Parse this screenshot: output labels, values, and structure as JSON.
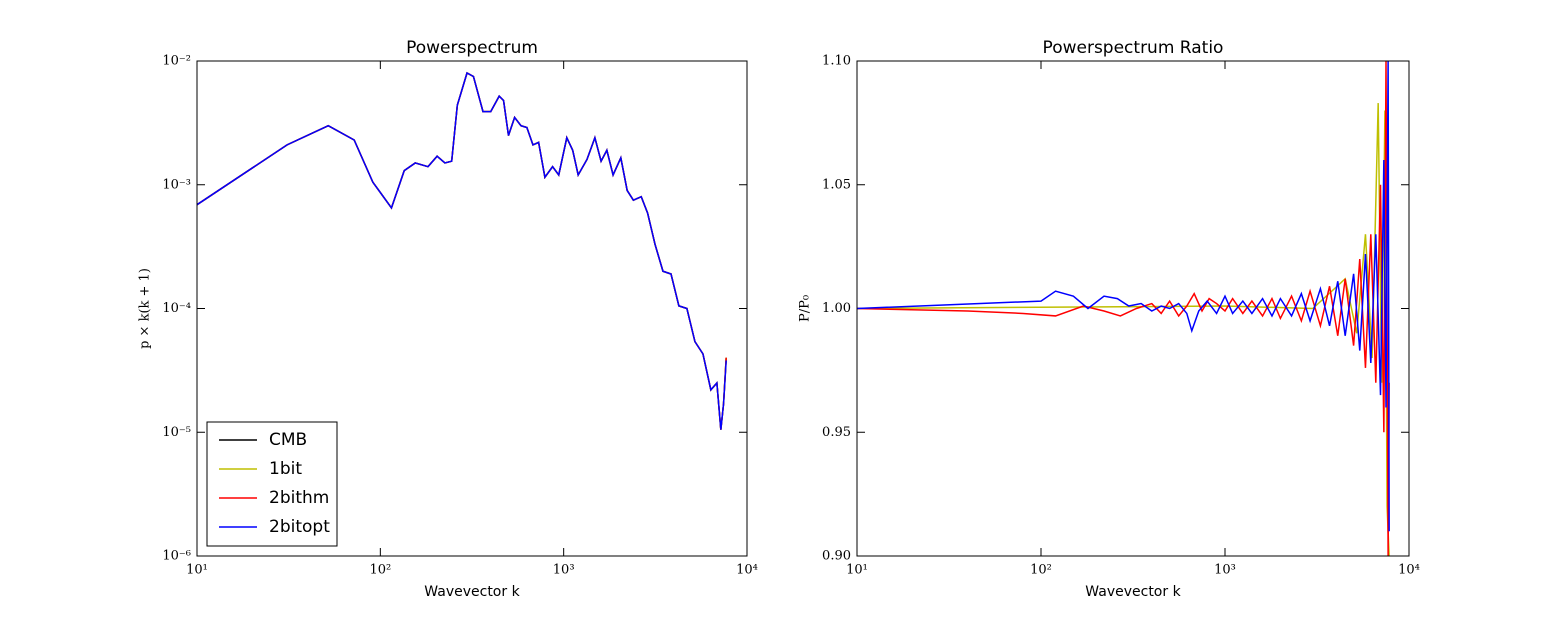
{
  "chart_data": [
    {
      "type": "line",
      "title": "Powerspectrum",
      "xlabel": "Wavevector k",
      "ylabel": "p × k(k + 1)",
      "xscale": "log",
      "yscale": "log",
      "legend": "lower left",
      "xlim": [
        10,
        10000
      ],
      "xticks": [
        {
          "value": 10,
          "label": "10¹"
        },
        {
          "value": 100,
          "label": "10²"
        },
        {
          "value": 1000,
          "label": "10³"
        },
        {
          "value": 10000,
          "label": "10⁴"
        }
      ],
      "ylim": [
        1e-06,
        0.01
      ],
      "yticks": [
        {
          "value": 1e-06,
          "label": "10⁻⁶"
        },
        {
          "value": 1e-05,
          "label": "10⁻⁵"
        },
        {
          "value": 0.0001,
          "label": "10⁻⁴"
        },
        {
          "value": 0.001,
          "label": "10⁻³"
        },
        {
          "value": 0.01,
          "label": "10⁻²"
        }
      ],
      "x": [
        10,
        31,
        52,
        72,
        91,
        115,
        135,
        155,
        182,
        204,
        225,
        245,
        263,
        297,
        322,
        363,
        400,
        445,
        470,
        500,
        540,
        585,
        630,
        680,
        730,
        790,
        870,
        940,
        1040,
        1120,
        1200,
        1340,
        1480,
        1600,
        1720,
        1860,
        2050,
        2220,
        2400,
        2650,
        2870,
        3150,
        3480,
        3850,
        4250,
        4700,
        5200,
        5750,
        6350,
        6850,
        7200,
        7450,
        7700
      ],
      "series": [
        {
          "name": "CMB",
          "color": "#000000",
          "values": [
            0.00069,
            0.0021,
            0.003,
            0.0023,
            0.00105,
            0.00065,
            0.0013,
            0.0015,
            0.0014,
            0.0017,
            0.0015,
            0.00155,
            0.0044,
            0.008,
            0.0075,
            0.0039,
            0.0039,
            0.0052,
            0.0048,
            0.0025,
            0.0035,
            0.003,
            0.0029,
            0.0021,
            0.0022,
            0.00115,
            0.0014,
            0.0012,
            0.0024,
            0.0019,
            0.0012,
            0.0016,
            0.0024,
            0.00155,
            0.0019,
            0.0012,
            0.00165,
            0.0009,
            0.00075,
            0.0008,
            0.00059,
            0.00033,
            0.0002,
            0.00019,
            0.000105,
            0.0001,
            5.4e-05,
            4.3e-05,
            2.2e-05,
            2.5e-05,
            1.05e-05,
            1.7e-05,
            4e-05
          ]
        },
        {
          "name": "1bit",
          "color": "#bfbf00",
          "values": [
            0.00069,
            0.0021,
            0.003,
            0.0023,
            0.00105,
            0.00065,
            0.0013,
            0.0015,
            0.0014,
            0.0017,
            0.0015,
            0.00155,
            0.0044,
            0.008,
            0.0075,
            0.0039,
            0.0039,
            0.0052,
            0.0048,
            0.0025,
            0.0035,
            0.003,
            0.0029,
            0.0021,
            0.0022,
            0.00115,
            0.0014,
            0.0012,
            0.0024,
            0.0019,
            0.0012,
            0.0016,
            0.0024,
            0.00155,
            0.0019,
            0.0012,
            0.00165,
            0.0009,
            0.00075,
            0.0008,
            0.00059,
            0.00033,
            0.0002,
            0.00019,
            0.000105,
            0.0001,
            5.4e-05,
            4.3e-05,
            2.2e-05,
            2.5e-05,
            1.05e-05,
            1.7e-05,
            4e-05
          ]
        },
        {
          "name": "2bithm",
          "color": "#ff0000",
          "values": [
            0.00069,
            0.0021,
            0.003,
            0.0023,
            0.00105,
            0.00065,
            0.0013,
            0.0015,
            0.0014,
            0.0017,
            0.0015,
            0.00155,
            0.0044,
            0.008,
            0.0075,
            0.0039,
            0.0039,
            0.0052,
            0.0048,
            0.0025,
            0.0035,
            0.003,
            0.0029,
            0.0021,
            0.0022,
            0.00115,
            0.0014,
            0.0012,
            0.0024,
            0.0019,
            0.0012,
            0.0016,
            0.0024,
            0.00155,
            0.0019,
            0.0012,
            0.00165,
            0.0009,
            0.00075,
            0.0008,
            0.00059,
            0.00033,
            0.0002,
            0.00019,
            0.000105,
            0.0001,
            5.4e-05,
            4.3e-05,
            2.2e-05,
            2.5e-05,
            1.05e-05,
            1.7e-05,
            4e-05
          ]
        },
        {
          "name": "2bitopt",
          "color": "#0000ff",
          "values": [
            0.00069,
            0.0021,
            0.003,
            0.0023,
            0.00105,
            0.00065,
            0.0013,
            0.0015,
            0.0014,
            0.0017,
            0.0015,
            0.00155,
            0.0044,
            0.008,
            0.0075,
            0.0039,
            0.0039,
            0.0052,
            0.0048,
            0.0025,
            0.0035,
            0.003,
            0.0029,
            0.0021,
            0.0022,
            0.00115,
            0.0014,
            0.0012,
            0.0024,
            0.0019,
            0.0012,
            0.0016,
            0.0024,
            0.00155,
            0.0019,
            0.0012,
            0.00165,
            0.0009,
            0.00075,
            0.0008,
            0.00059,
            0.00033,
            0.0002,
            0.00019,
            0.000105,
            0.0001,
            5.4e-05,
            4.3e-05,
            2.2e-05,
            2.5e-05,
            1.05e-05,
            1.7e-05,
            3.8e-05
          ]
        }
      ]
    },
    {
      "type": "line",
      "title": "Powerspectrum Ratio",
      "xlabel": "Wavevector k",
      "ylabel": "P/P₀",
      "xscale": "log",
      "xlim": [
        10,
        10000
      ],
      "xticks": [
        {
          "value": 10,
          "label": "10¹"
        },
        {
          "value": 100,
          "label": "10²"
        },
        {
          "value": 1000,
          "label": "10³"
        },
        {
          "value": 10000,
          "label": "10⁴"
        }
      ],
      "ylim": [
        0.9,
        1.1
      ],
      "yticks": [
        {
          "value": 0.9,
          "label": "0.90"
        },
        {
          "value": 0.95,
          "label": "0.95"
        },
        {
          "value": 1,
          "label": "1.00"
        },
        {
          "value": 1.05,
          "label": "1.05"
        },
        {
          "value": 1.1,
          "label": "1.10"
        }
      ],
      "series": [
        {
          "color": "#bfbf00",
          "x": [
            10,
            1000,
            3000,
            4500,
            5200,
            5800,
            6300,
            6800,
            7100,
            7400,
            7600,
            7800
          ],
          "values": [
            1.0,
            1.001,
            1.0,
            1.012,
            0.99,
            1.03,
            0.98,
            1.083,
            0.97,
            1.08,
            0.92,
            0.9
          ]
        },
        {
          "color": "#ff0000",
          "x": [
            10,
            40,
            80,
            120,
            170,
            220,
            270,
            330,
            400,
            450,
            500,
            560,
            620,
            680,
            750,
            820,
            900,
            1000,
            1100,
            1250,
            1400,
            1600,
            1800,
            2000,
            2300,
            2600,
            2900,
            3300,
            3700,
            4100,
            4500,
            5000,
            5400,
            5800,
            6200,
            6600,
            7000,
            7300,
            7500,
            7700,
            7800
          ],
          "values": [
            1.0,
            0.999,
            0.998,
            0.997,
            1.001,
            0.999,
            0.997,
            1.0,
            1.002,
            0.998,
            1.003,
            0.997,
            1.001,
            1.006,
            0.999,
            1.004,
            1.002,
            0.999,
            1.004,
            0.998,
            1.003,
            0.997,
            1.004,
            0.996,
            1.005,
            0.995,
            1.007,
            0.993,
            1.009,
            0.989,
            1.012,
            0.985,
            1.02,
            0.976,
            1.03,
            0.97,
            1.05,
            0.95,
            1.1,
            0.9,
            0.97
          ]
        },
        {
          "color": "#0000ff",
          "x": [
            10,
            100,
            120,
            150,
            180,
            220,
            260,
            300,
            350,
            400,
            450,
            500,
            560,
            620,
            660,
            720,
            800,
            900,
            1000,
            1100,
            1250,
            1400,
            1600,
            1800,
            2000,
            2300,
            2600,
            2900,
            3300,
            3700,
            4100,
            4500,
            5000,
            5400,
            5800,
            6200,
            6600,
            7000,
            7300,
            7500,
            7700,
            7800
          ],
          "values": [
            1.0,
            1.003,
            1.007,
            1.005,
            1.0,
            1.005,
            1.004,
            1.001,
            1.002,
            0.999,
            1.001,
            1.0,
            1.002,
            0.998,
            0.991,
            0.999,
            1.003,
            0.998,
            1.005,
            0.998,
            1.003,
            0.998,
            1.004,
            0.997,
            1.004,
            0.997,
            1.006,
            0.995,
            1.008,
            0.993,
            1.011,
            0.989,
            1.014,
            0.983,
            1.022,
            0.978,
            1.03,
            0.965,
            1.06,
            0.96,
            1.1,
            0.91
          ]
        }
      ]
    }
  ]
}
